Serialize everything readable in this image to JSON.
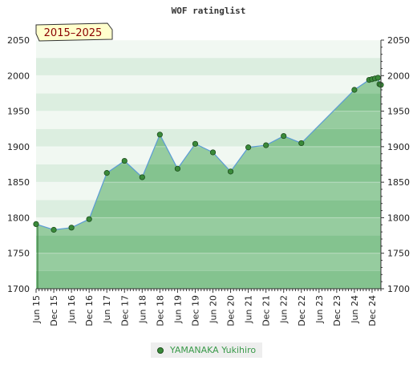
{
  "chart_data": {
    "type": "area",
    "title": "WOF ratinglist",
    "badge": "2015–2025",
    "xlabel": "",
    "ylabel": "",
    "ylim": [
      1700,
      2050
    ],
    "yticks": [
      1700,
      1750,
      1800,
      1850,
      1900,
      1950,
      2000,
      2050
    ],
    "xticks": [
      {
        "label": "Jun 15",
        "t": 0
      },
      {
        "label": "Dec 15",
        "t": 6
      },
      {
        "label": "Jun 16",
        "t": 12
      },
      {
        "label": "Dec 16",
        "t": 18
      },
      {
        "label": "Jun 17",
        "t": 24
      },
      {
        "label": "Dec 17",
        "t": 30
      },
      {
        "label": "Jun 18",
        "t": 36
      },
      {
        "label": "Dec 18",
        "t": 42
      },
      {
        "label": "Jun 19",
        "t": 48
      },
      {
        "label": "Dec 19",
        "t": 54
      },
      {
        "label": "Jun 20",
        "t": 60
      },
      {
        "label": "Dec 20",
        "t": 66
      },
      {
        "label": "Jun 21",
        "t": 72
      },
      {
        "label": "Dec 21",
        "t": 78
      },
      {
        "label": "Jun 22",
        "t": 84
      },
      {
        "label": "Dec 22",
        "t": 90
      },
      {
        "label": "Jun 23",
        "t": 96
      },
      {
        "label": "Dec 23",
        "t": 102
      },
      {
        "label": "Jun 24",
        "t": 108
      },
      {
        "label": "Dec 24",
        "t": 114
      }
    ],
    "xlim": [
      0,
      117
    ],
    "series": [
      {
        "name": "YAMANAKA Yukihiro",
        "points": [
          {
            "t": 0,
            "y": 1791
          },
          {
            "t": 6,
            "y": 1783
          },
          {
            "t": 12,
            "y": 1786
          },
          {
            "t": 18,
            "y": 1798
          },
          {
            "t": 24,
            "y": 1863
          },
          {
            "t": 30,
            "y": 1880
          },
          {
            "t": 36,
            "y": 1857
          },
          {
            "t": 42,
            "y": 1917
          },
          {
            "t": 48,
            "y": 1869
          },
          {
            "t": 54,
            "y": 1904
          },
          {
            "t": 60,
            "y": 1892
          },
          {
            "t": 66,
            "y": 1865
          },
          {
            "t": 72,
            "y": 1899
          },
          {
            "t": 78,
            "y": 1902
          },
          {
            "t": 84,
            "y": 1915
          },
          {
            "t": 90,
            "y": 1905
          },
          {
            "t": 108,
            "y": 1980
          },
          {
            "t": 113,
            "y": 1994
          },
          {
            "t": 114,
            "y": 1995
          },
          {
            "t": 115,
            "y": 1996
          },
          {
            "t": 116,
            "y": 1997
          },
          {
            "t": 116.5,
            "y": 1988
          },
          {
            "t": 117,
            "y": 1987
          }
        ]
      }
    ],
    "grid": true,
    "legend_position": "bottom-center"
  },
  "colors": {
    "area_fill": "#6dbb7a",
    "line": "#5b9bd5",
    "marker": "#3a8a3a",
    "band_a": "#dceee0",
    "band_b": "#f1f8f2",
    "badge_fill": "#ffffcc"
  }
}
